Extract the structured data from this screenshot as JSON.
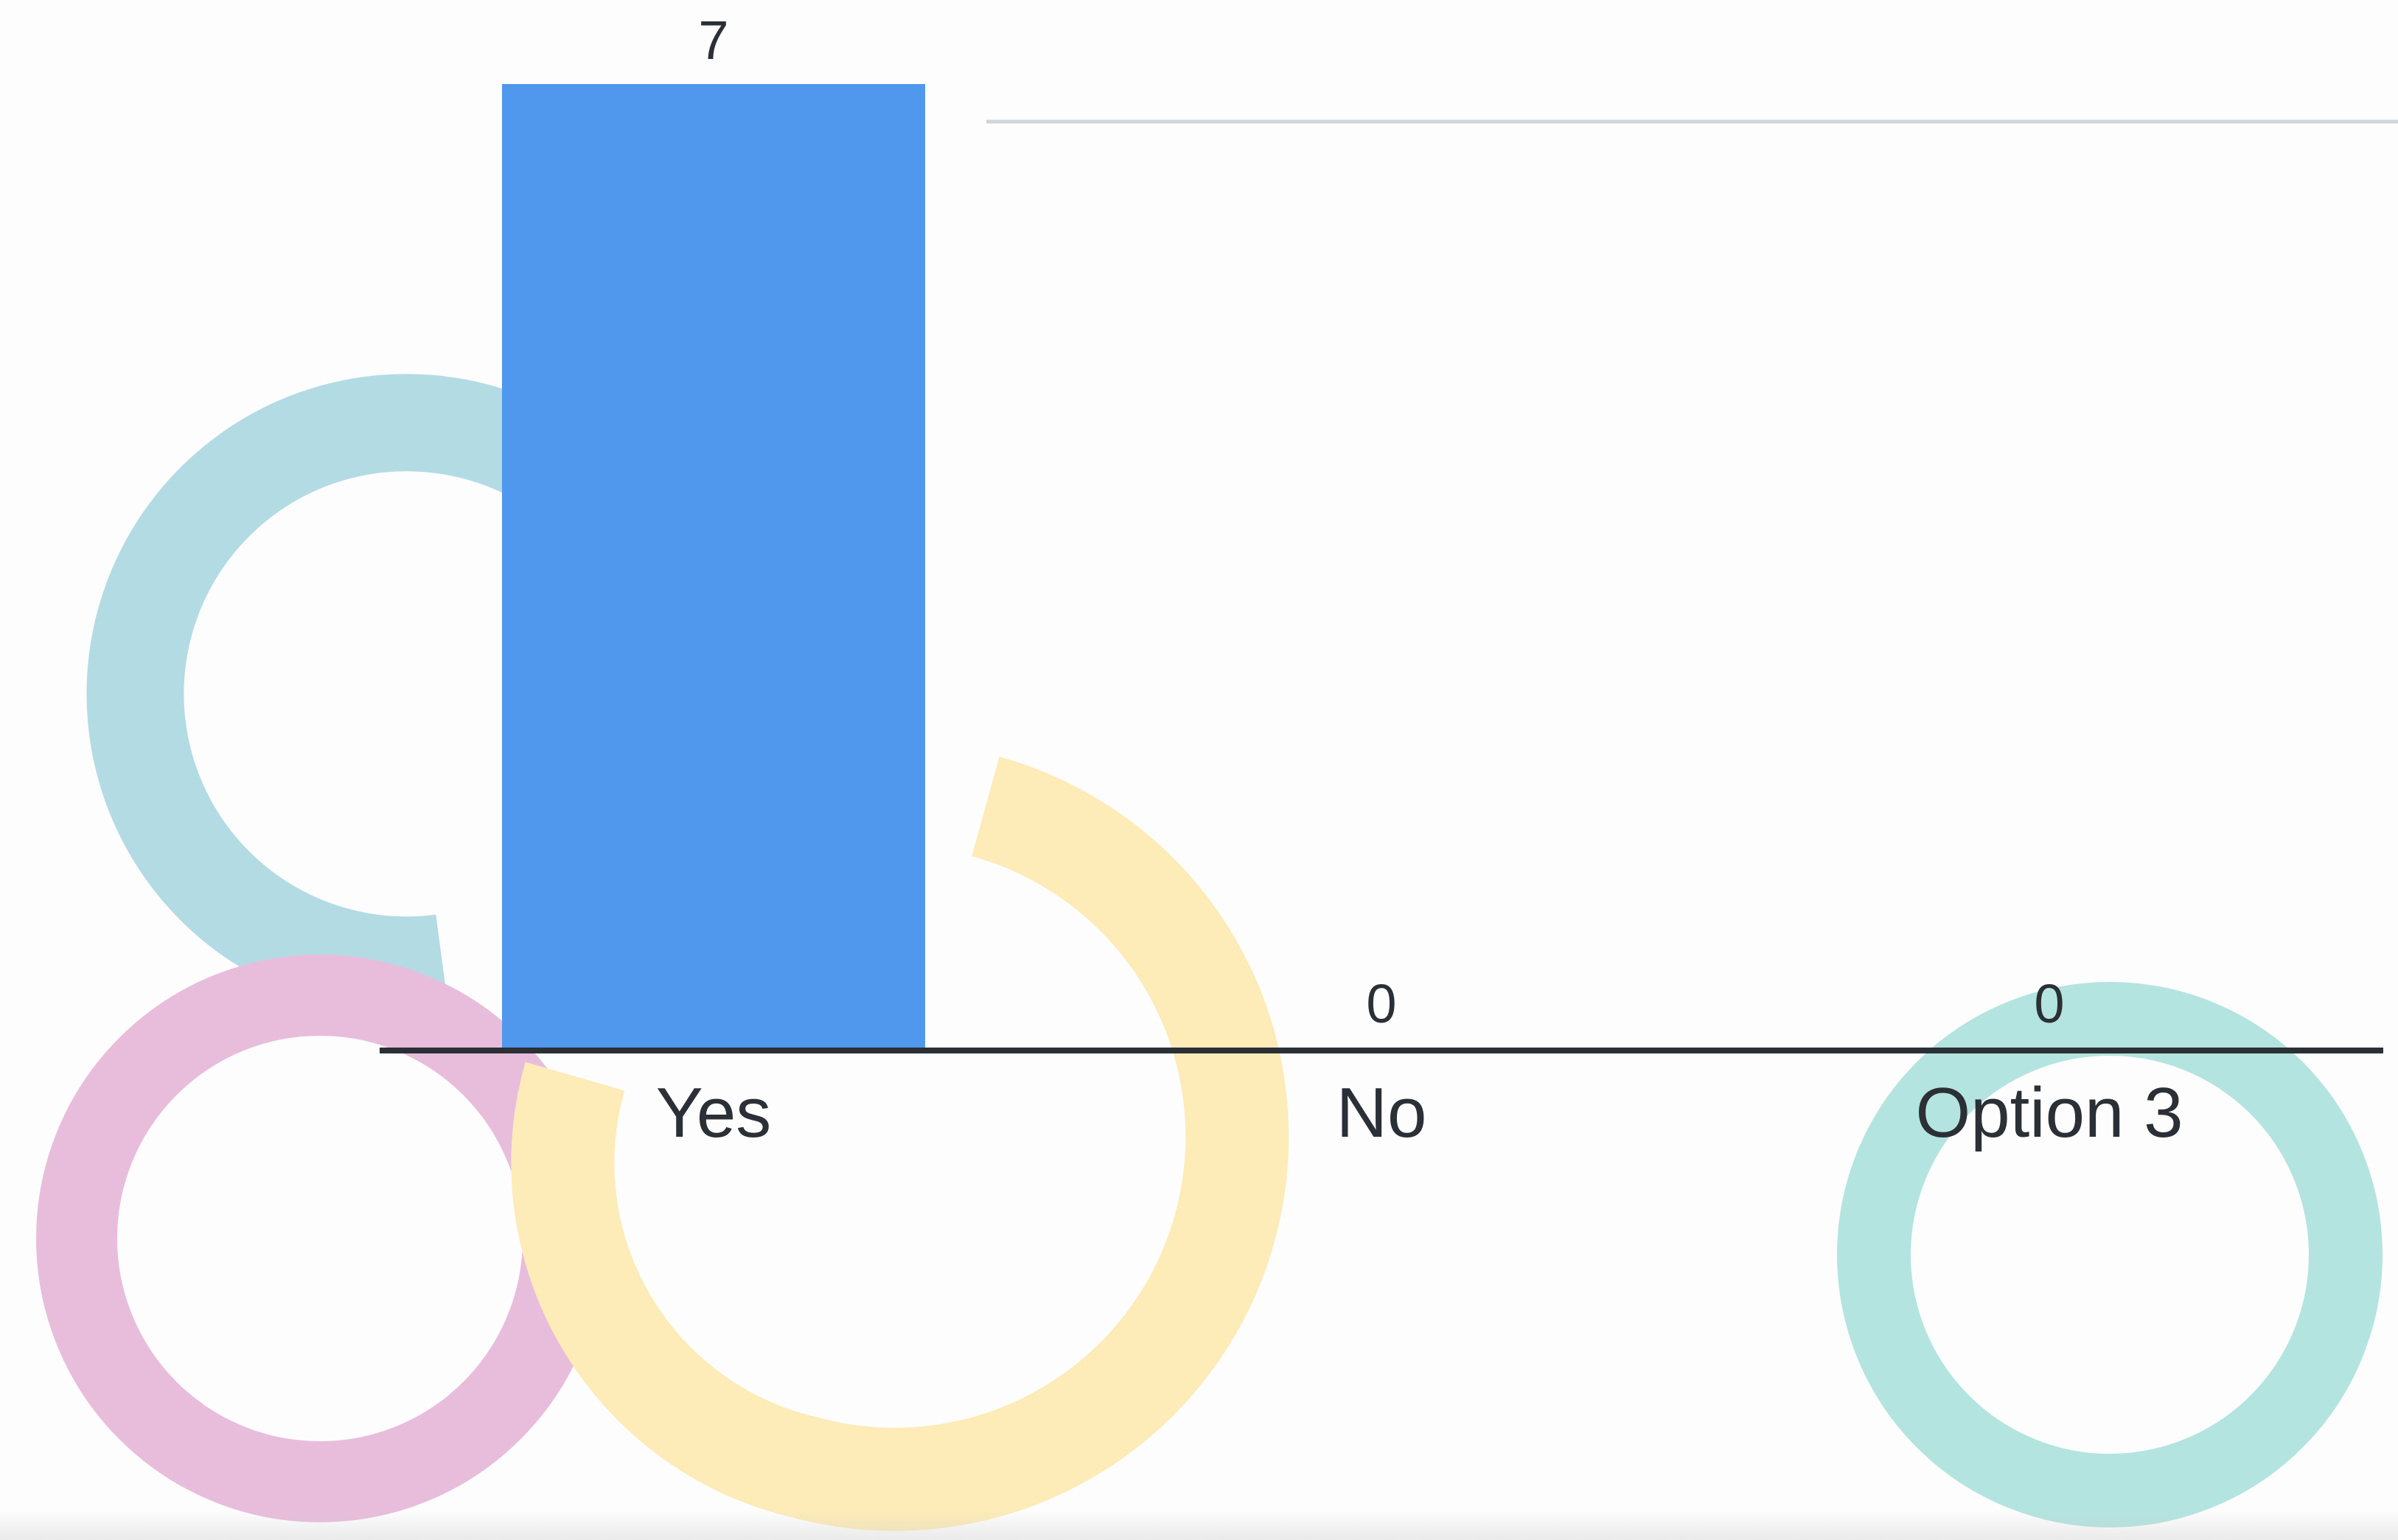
{
  "chart_data": {
    "type": "bar",
    "categories": [
      "Yes",
      "No",
      "Option 3"
    ],
    "values": [
      7,
      0,
      0
    ],
    "data_labels": [
      "7",
      "0",
      "0"
    ],
    "title": "",
    "xlabel": "",
    "ylabel": "",
    "ylim": [
      0,
      7
    ],
    "grid": false,
    "legend": "none",
    "bar_color": "#4f98ee",
    "axis_color": "#2b2f36"
  },
  "background": {
    "decoration": "overlapping-rings",
    "ring_colors": [
      "#b3dbe4",
      "#e8bddc",
      "#fdebb8",
      "#b4e4df"
    ]
  }
}
